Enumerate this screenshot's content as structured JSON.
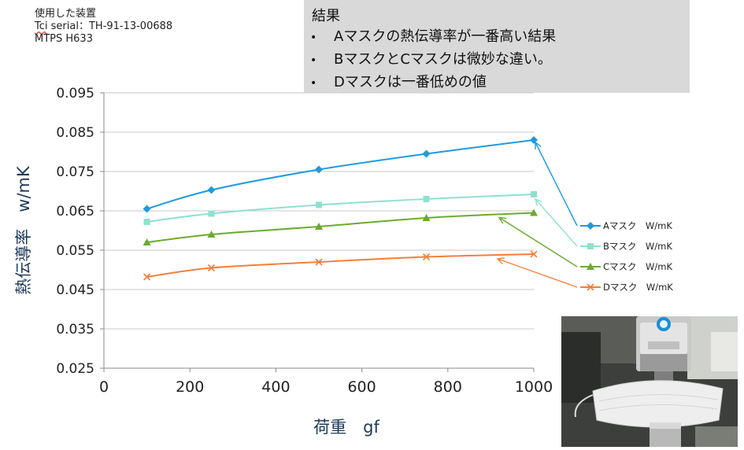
{
  "device_info": {
    "title": "使用した装置",
    "serial_prefix": "Tci",
    "serial_rest": " serial：TH-91-13-00688",
    "model": "MTPS  H633"
  },
  "results": {
    "title": "結果",
    "items": [
      "Aマスクの熱伝導率が一番高い結果",
      "BマスクとCマスクは微妙な違い。",
      "Dマスクは一番低めの値"
    ]
  },
  "photo": {
    "description": "測定装置の写真"
  },
  "chart_data": {
    "type": "line",
    "xlabel": "荷重　gf",
    "ylabel": "熱伝導率　w/mK",
    "xlim": [
      0,
      1000
    ],
    "ylim": [
      0.025,
      0.095
    ],
    "x_ticks": [
      "0",
      "200",
      "400",
      "600",
      "800",
      "1000"
    ],
    "y_ticks": [
      "0.025",
      "0.035",
      "0.045",
      "0.055",
      "0.065",
      "0.075",
      "0.085",
      "0.095"
    ],
    "grid": "horizontal",
    "legend_position": "right",
    "x": [
      100,
      250,
      500,
      750,
      1000
    ],
    "series": [
      {
        "name": "Aマスク　W/mK",
        "color": "#1f9bde",
        "marker": "diamond",
        "values": [
          0.0655,
          0.0703,
          0.0755,
          0.0795,
          0.083
        ]
      },
      {
        "name": "Bマスク　W/mK",
        "color": "#8fe0d0",
        "marker": "square",
        "values": [
          0.0622,
          0.0643,
          0.0665,
          0.068,
          0.0692
        ]
      },
      {
        "name": "Cマスク　W/mK",
        "color": "#6aab2e",
        "marker": "triangle",
        "values": [
          0.057,
          0.059,
          0.061,
          0.0632,
          0.0645
        ]
      },
      {
        "name": "Dマスク　W/mK",
        "color": "#f47f3a",
        "marker": "x",
        "values": [
          0.0482,
          0.0505,
          0.052,
          0.0533,
          0.054
        ]
      }
    ]
  }
}
